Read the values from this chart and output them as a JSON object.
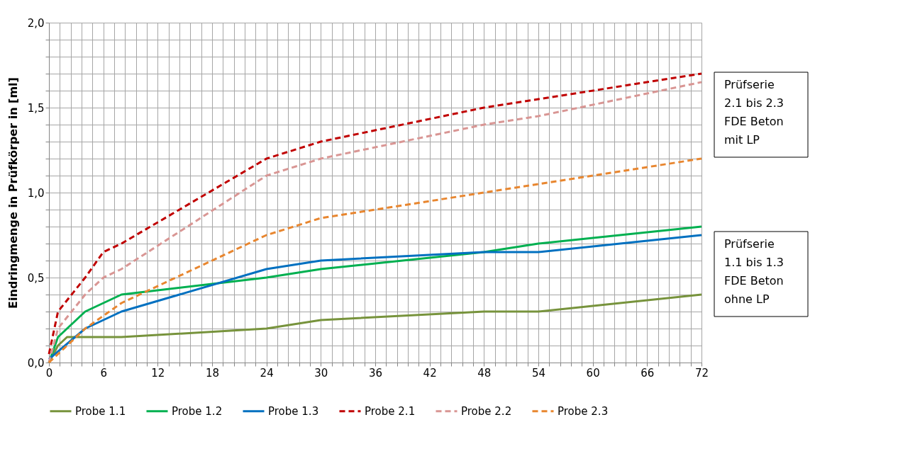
{
  "chart_data": {
    "type": "line",
    "ylabel": "Eindringmenge in Prüfkörper in [ml]",
    "xlim": [
      0,
      72
    ],
    "ylim": [
      0,
      2
    ],
    "xticks": [
      0,
      {
        "value": 1.2,
        "label": null
      },
      {
        "value": 2.4,
        "label": null
      },
      {
        "value": 3.6,
        "label": null
      },
      {
        "value": 4.8,
        "label": null
      },
      6,
      {
        "value": 7.2,
        "label": null
      },
      {
        "value": 8.4,
        "label": null
      },
      {
        "value": 9.6,
        "label": null
      },
      {
        "value": 10.8,
        "label": null
      },
      12,
      {
        "value": 13.2,
        "label": null
      },
      {
        "value": 14.4,
        "label": null
      },
      {
        "value": 15.6,
        "label": null
      },
      {
        "value": 16.8,
        "label": null
      },
      18,
      {
        "value": 19.2,
        "label": null
      },
      {
        "value": 20.4,
        "label": null
      },
      {
        "value": 21.6,
        "label": null
      },
      {
        "value": 22.8,
        "label": null
      },
      24,
      {
        "value": 25.2,
        "label": null
      },
      {
        "value": 26.4,
        "label": null
      },
      {
        "value": 27.6,
        "label": null
      },
      {
        "value": 28.8,
        "label": null
      },
      30,
      {
        "value": 31.2,
        "label": null
      },
      {
        "value": 32.4,
        "label": null
      },
      {
        "value": 33.6,
        "label": null
      },
      {
        "value": 34.8,
        "label": null
      },
      36,
      {
        "value": 37.2,
        "label": null
      },
      {
        "value": 38.4,
        "label": null
      },
      {
        "value": 39.6,
        "label": null
      },
      {
        "value": 40.8,
        "label": null
      },
      42,
      {
        "value": 43.2,
        "label": null
      },
      {
        "value": 44.4,
        "label": null
      },
      {
        "value": 45.6,
        "label": null
      },
      {
        "value": 46.8,
        "label": null
      },
      48,
      {
        "value": 49.2,
        "label": null
      },
      {
        "value": 50.4,
        "label": null
      },
      {
        "value": 51.6,
        "label": null
      },
      {
        "value": 52.8,
        "label": null
      },
      54,
      {
        "value": 55.2,
        "label": null
      },
      {
        "value": 56.4,
        "label": null
      },
      {
        "value": 57.6,
        "label": null
      },
      {
        "value": 58.8,
        "label": null
      },
      60,
      {
        "value": 61.2,
        "label": null
      },
      {
        "value": 62.4,
        "label": null
      },
      {
        "value": 63.6,
        "label": null
      },
      {
        "value": 64.8,
        "label": null
      },
      66,
      {
        "value": 67.2,
        "label": null
      },
      {
        "value": 68.4,
        "label": null
      },
      {
        "value": 69.6,
        "label": null
      },
      {
        "value": 70.8,
        "label": null
      },
      72
    ],
    "yticks": [
      {
        "value": 0,
        "label": "0,0"
      },
      {
        "value": 0.1,
        "label": null
      },
      {
        "value": 0.2,
        "label": null
      },
      {
        "value": 0.3,
        "label": null
      },
      {
        "value": 0.4,
        "label": null
      },
      {
        "value": 0.5,
        "label": "0,5"
      },
      {
        "value": 0.6,
        "label": null
      },
      {
        "value": 0.7,
        "label": null
      },
      {
        "value": 0.8,
        "label": null
      },
      {
        "value": 0.9,
        "label": null
      },
      {
        "value": 1.0,
        "label": "1,0"
      },
      {
        "value": 1.1,
        "label": null
      },
      {
        "value": 1.2,
        "label": null
      },
      {
        "value": 1.3,
        "label": null
      },
      {
        "value": 1.4,
        "label": null
      },
      {
        "value": 1.5,
        "label": "1,5"
      },
      {
        "value": 1.6,
        "label": null
      },
      {
        "value": 1.7,
        "label": null
      },
      {
        "value": 1.8,
        "label": null
      },
      {
        "value": 1.9,
        "label": null
      },
      {
        "value": 2.0,
        "label": "2,0"
      }
    ],
    "grid": true,
    "legend": "bottom",
    "marker": "none",
    "series": [
      {
        "name": "Probe 1.1",
        "color": "#77933c",
        "line_style": "solid",
        "x": [
          0,
          1,
          2,
          8,
          24,
          30,
          48,
          54,
          72
        ],
        "values": [
          0,
          0.1,
          0.15,
          0.15,
          0.2,
          0.25,
          0.3,
          0.3,
          0.4
        ]
      },
      {
        "name": "Probe 1.2",
        "color": "#00b050",
        "line_style": "solid",
        "x": [
          0,
          1,
          4,
          8,
          24,
          30,
          48,
          54,
          72
        ],
        "values": [
          0,
          0.15,
          0.3,
          0.4,
          0.5,
          0.55,
          0.65,
          0.7,
          0.8
        ]
      },
      {
        "name": "Probe 1.3",
        "color": "#0070c0",
        "line_style": "solid",
        "x": [
          0,
          4,
          8,
          24,
          30,
          48,
          54,
          72
        ],
        "values": [
          0.02,
          0.2,
          0.3,
          0.55,
          0.6,
          0.65,
          0.65,
          0.75
        ]
      },
      {
        "name": "Probe 2.1",
        "color": "#c00000",
        "line_style": "dashed",
        "x": [
          0,
          1,
          4,
          6,
          8,
          24,
          30,
          48,
          54,
          72
        ],
        "values": [
          0.05,
          0.3,
          0.5,
          0.65,
          0.7,
          1.2,
          1.3,
          1.5,
          1.55,
          1.7
        ]
      },
      {
        "name": "Probe 2.2",
        "color": "#d99694",
        "line_style": "dashed",
        "x": [
          0,
          1,
          4,
          6,
          8,
          24,
          30,
          48,
          54,
          72
        ],
        "values": [
          0,
          0.2,
          0.4,
          0.5,
          0.55,
          1.1,
          1.2,
          1.4,
          1.45,
          1.65
        ]
      },
      {
        "name": "Probe 2.3",
        "color": "#e8862f",
        "line_style": "dashed",
        "x": [
          0,
          4,
          8,
          24,
          30,
          48,
          54,
          72
        ],
        "values": [
          0,
          0.2,
          0.35,
          0.75,
          0.85,
          1.0,
          1.05,
          1.2
        ]
      }
    ],
    "annotations": [
      "Prüfserie\n2.1 bis 2.3\nFDE Beton\nmit LP",
      "Prüfserie\n1.1 bis 1.3\nFDE Beton\nohne LP"
    ]
  }
}
